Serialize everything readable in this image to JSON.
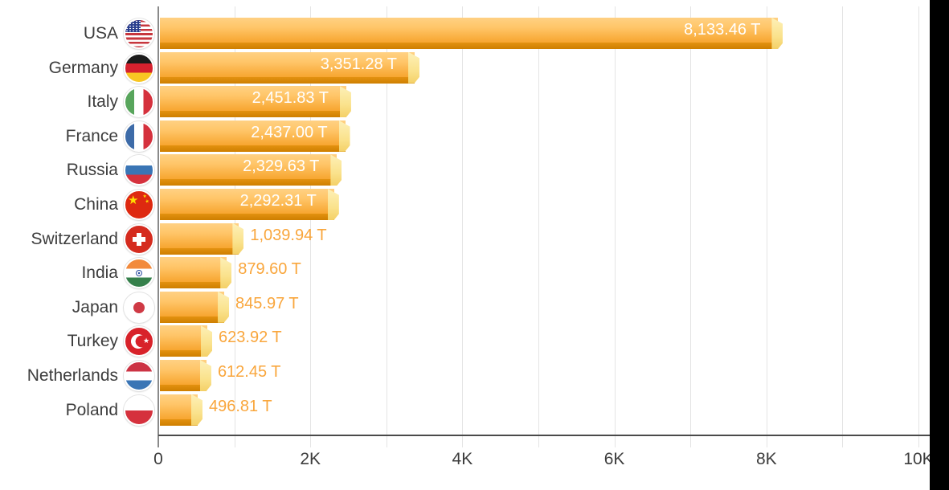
{
  "chart_data": {
    "type": "bar",
    "orientation": "horizontal",
    "title": "",
    "unit": "T",
    "legend": null,
    "grid": "vertical-minor-1000",
    "rows": [
      {
        "country": "USA",
        "value": 8133.46,
        "label": "8,133.46 T",
        "flag": "usa"
      },
      {
        "country": "Germany",
        "value": 3351.28,
        "label": "3,351.28 T",
        "flag": "germany"
      },
      {
        "country": "Italy",
        "value": 2451.83,
        "label": "2,451.83 T",
        "flag": "italy"
      },
      {
        "country": "France",
        "value": 2437.0,
        "label": "2,437.00 T",
        "flag": "france"
      },
      {
        "country": "Russia",
        "value": 2329.63,
        "label": "2,329.63 T",
        "flag": "russia"
      },
      {
        "country": "China",
        "value": 2292.31,
        "label": "2,292.31 T",
        "flag": "china"
      },
      {
        "country": "Switzerland",
        "value": 1039.94,
        "label": "1,039.94 T",
        "flag": "switzerland"
      },
      {
        "country": "India",
        "value": 879.6,
        "label": "879.60 T",
        "flag": "india"
      },
      {
        "country": "Japan",
        "value": 845.97,
        "label": "845.97 T",
        "flag": "japan"
      },
      {
        "country": "Turkey",
        "value": 623.92,
        "label": "623.92 T",
        "flag": "turkey"
      },
      {
        "country": "Netherlands",
        "value": 612.45,
        "label": "612.45 T",
        "flag": "netherlands"
      },
      {
        "country": "Poland",
        "value": 496.81,
        "label": "496.81 T",
        "flag": "poland"
      }
    ],
    "x_axis": {
      "min": 0,
      "max": 10000,
      "gridline_step": 1000,
      "tick_labels": [
        {
          "value": 0,
          "label": "0"
        },
        {
          "value": 2000,
          "label": "2K"
        },
        {
          "value": 4000,
          "label": "4K"
        },
        {
          "value": 6000,
          "label": "6K"
        },
        {
          "value": 8000,
          "label": "8K"
        },
        {
          "value": 10000,
          "label": "10K"
        }
      ]
    },
    "colors": {
      "bar_top": "#FFD183",
      "bar_bottom": "#F7A52F",
      "bar_shadow_strip": "#CE7F00",
      "bar_end_cap": "#FAE28C",
      "value_label_inside": "#FFFFFF",
      "value_label_outside": "#F9A63C",
      "category_label": "#3D3D3D",
      "gridline": "#E4E4E4",
      "axis_line": "#4A4A4A"
    }
  }
}
